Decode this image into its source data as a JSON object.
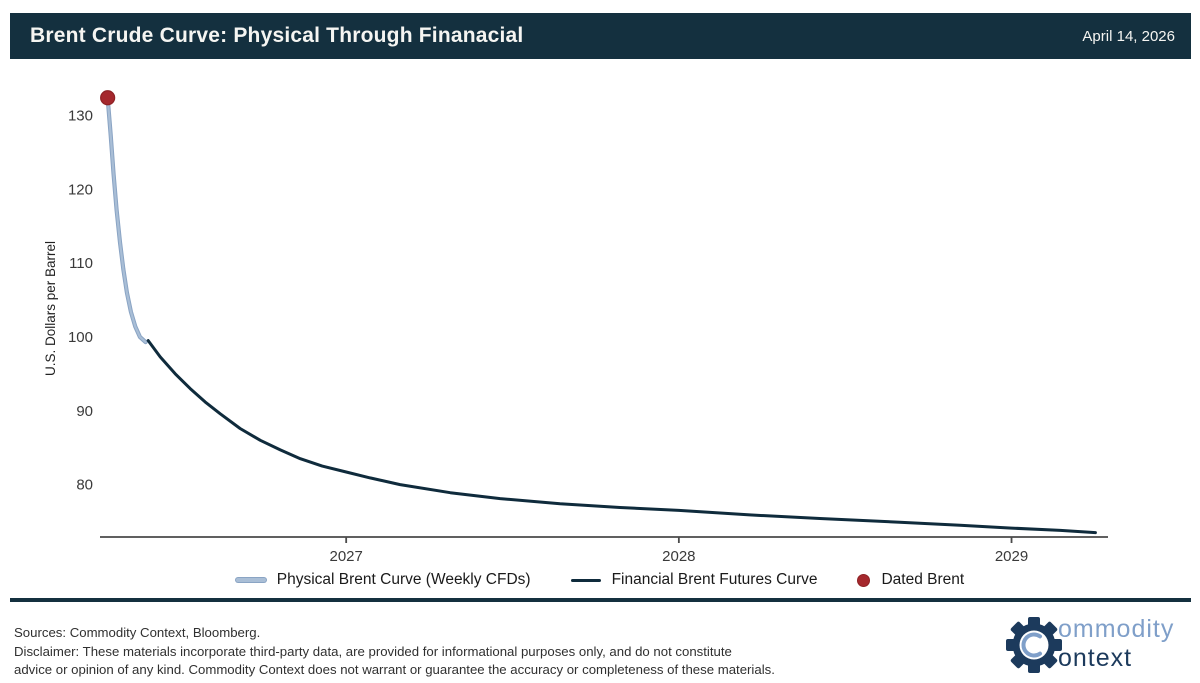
{
  "header": {
    "title": "Brent Crude Curve: Physical Through Finanacial",
    "date": "April 14, 2026"
  },
  "colors": {
    "navy": "#14303F",
    "curve_navy": "#0F2B3C",
    "light_blue": "#A9BED6",
    "light_blue_edge": "#8AA4C4",
    "red": "#A5282D",
    "red_edge": "#8E2225",
    "axis_text": "#3A3A3A",
    "axis_line": "#4A4A4A",
    "logo_light_blue": "#7F9FC9",
    "logo_navy": "#1C3A5C"
  },
  "chart_data": {
    "type": "line",
    "title": "Brent Crude Curve: Physical Through Finanacial",
    "as_of_date": "April 14, 2026",
    "xlabel": "",
    "ylabel": "U.S. Dollars per Barrel",
    "xlim": [
      2026.26,
      2029.29
    ],
    "ylim": [
      72.9,
      134.8
    ],
    "grid": false,
    "legend_position": "bottom",
    "xticks": [
      {
        "value": 2027,
        "label": "2027"
      },
      {
        "value": 2028,
        "label": "2028"
      },
      {
        "value": 2029,
        "label": "2029"
      }
    ],
    "yticks": [
      80,
      90,
      100,
      110,
      120,
      130
    ],
    "series": [
      {
        "name": "Physical Brent Curve (Weekly CFDs)",
        "slug": "physical-brent-curve",
        "type": "line",
        "color_key": "light_blue",
        "edge_key": "light_blue_edge",
        "width": 2.2,
        "points": [
          [
            2026.283,
            132.3
          ],
          [
            2026.292,
            127.5
          ],
          [
            2026.301,
            122.0
          ],
          [
            2026.31,
            117.2
          ],
          [
            2026.32,
            112.8
          ],
          [
            2026.33,
            109.2
          ],
          [
            2026.341,
            106.0
          ],
          [
            2026.353,
            103.4
          ],
          [
            2026.366,
            101.4
          ],
          [
            2026.38,
            100.0
          ],
          [
            2026.397,
            99.3
          ]
        ]
      },
      {
        "name": "Financial Brent Futures Curve",
        "slug": "financial-brent-futures-curve",
        "type": "line",
        "color_key": "curve_navy",
        "width": 3,
        "points": [
          [
            2026.405,
            99.5
          ],
          [
            2026.441,
            97.3
          ],
          [
            2026.486,
            95.0
          ],
          [
            2026.531,
            93.0
          ],
          [
            2026.576,
            91.2
          ],
          [
            2026.621,
            89.6
          ],
          [
            2026.681,
            87.6
          ],
          [
            2026.742,
            86.0
          ],
          [
            2026.802,
            84.7
          ],
          [
            2026.862,
            83.5
          ],
          [
            2026.928,
            82.5
          ],
          [
            2027.0,
            81.7
          ],
          [
            2027.072,
            80.9
          ],
          [
            2027.162,
            80.0
          ],
          [
            2027.313,
            78.9
          ],
          [
            2027.463,
            78.1
          ],
          [
            2027.643,
            77.4
          ],
          [
            2027.823,
            76.9
          ],
          [
            2028.0,
            76.5
          ],
          [
            2028.213,
            75.9
          ],
          [
            2028.424,
            75.4
          ],
          [
            2028.664,
            74.9
          ],
          [
            2028.845,
            74.5
          ],
          [
            2029.0,
            74.1
          ],
          [
            2029.147,
            73.8
          ],
          [
            2029.252,
            73.5
          ]
        ]
      },
      {
        "name": "Dated Brent",
        "slug": "dated-brent",
        "type": "scatter",
        "color_key": "red",
        "edge_key": "red_edge",
        "points": [
          [
            2026.283,
            132.4
          ]
        ]
      }
    ]
  },
  "footer": {
    "lines": [
      "Sources: Commodity Context, Bloomberg.",
      "Disclaimer: These materials incorporate third-party data, are provided for informational purposes only, and do not constitute",
      "advice or opinion of any kind. Commodity Context does not warrant or guarantee the accuracy or completeness of these materials."
    ],
    "logo": {
      "line1": "ommodity",
      "line2": "ontext"
    }
  }
}
